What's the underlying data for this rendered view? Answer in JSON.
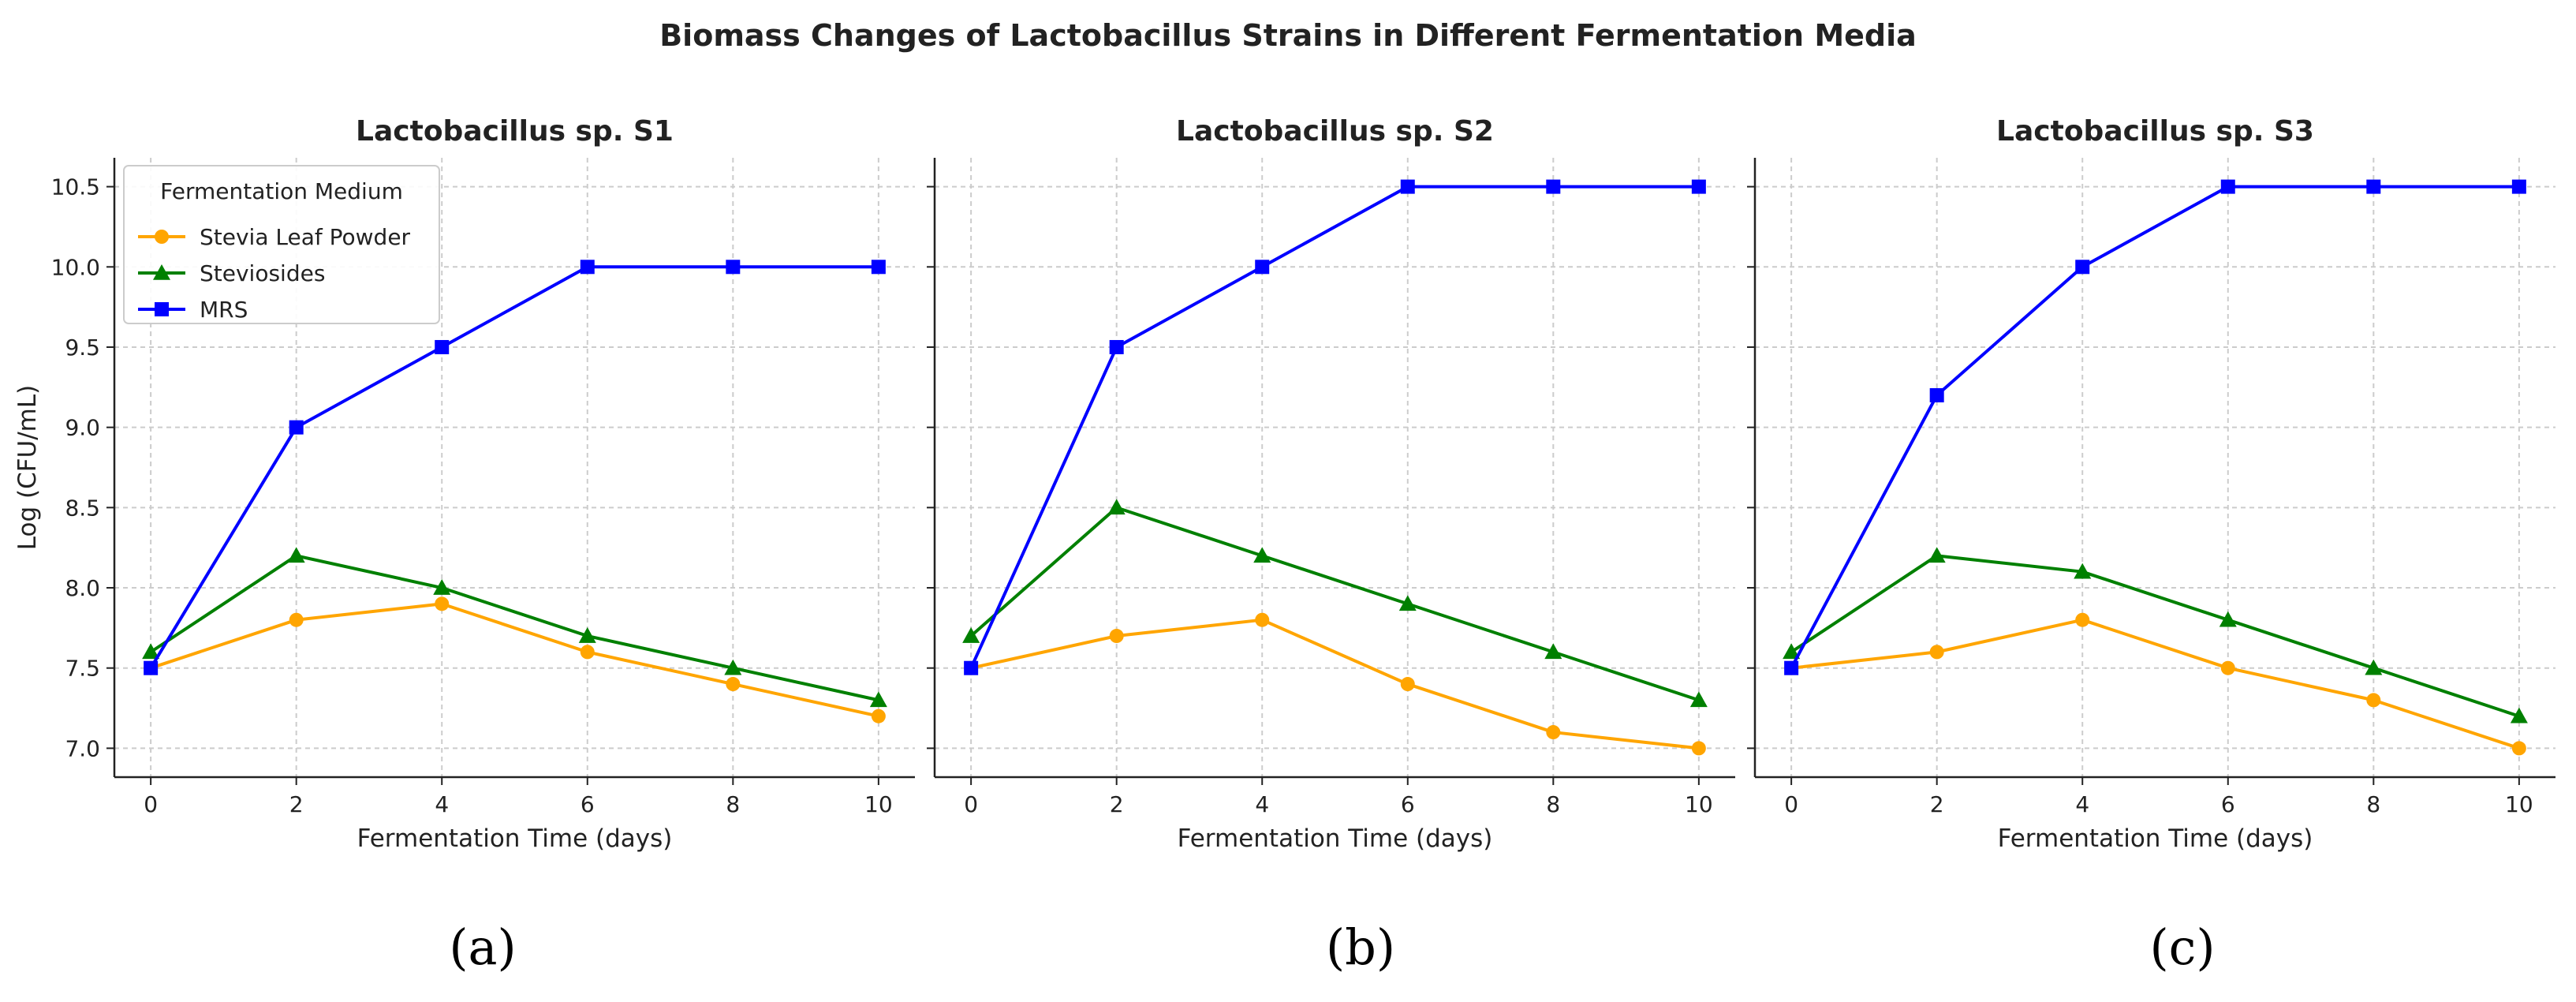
{
  "figure_title": "Biomass Changes of Lactobacillus Strains in Different Fermentation Media",
  "colors": {
    "stevia_leaf_powder": "#FFA500",
    "steviosides": "#008000",
    "mrs": "#0000FF",
    "grid": "#cccccc",
    "axis": "#222222"
  },
  "legend": {
    "title": "Fermentation Medium",
    "placement": "upper-left of first panel",
    "entries": [
      "Stevia Leaf Powder",
      "Steviosides",
      "MRS"
    ]
  },
  "chart_data": [
    {
      "type": "line",
      "panel_label": "(a)",
      "title": "Lactobacillus sp. S1",
      "xlabel": "Fermentation Time (days)",
      "ylabel": "Log (CFU/mL)",
      "x": [
        0,
        2,
        4,
        6,
        8,
        10
      ],
      "xlim": [
        -0.5,
        10.5
      ],
      "ylim": [
        6.82,
        10.68
      ],
      "xticks": [
        0,
        2,
        4,
        6,
        8,
        10
      ],
      "yticks": [
        "7.0",
        "7.5",
        "8.0",
        "8.5",
        "9.0",
        "9.5",
        "10.0",
        "10.5"
      ],
      "grid": true,
      "series": [
        {
          "name": "Stevia Leaf Powder",
          "marker": "circle",
          "values": [
            7.5,
            7.8,
            7.9,
            7.6,
            7.4,
            7.2
          ]
        },
        {
          "name": "Steviosides",
          "marker": "triangle",
          "values": [
            7.6,
            8.2,
            8.0,
            7.7,
            7.5,
            7.3
          ]
        },
        {
          "name": "MRS",
          "marker": "square",
          "values": [
            7.5,
            9.0,
            9.5,
            10.0,
            10.0,
            10.0
          ]
        }
      ]
    },
    {
      "type": "line",
      "panel_label": "(b)",
      "title": "Lactobacillus sp. S2",
      "xlabel": "Fermentation Time (days)",
      "ylabel": "",
      "x": [
        0,
        2,
        4,
        6,
        8,
        10
      ],
      "xlim": [
        -0.5,
        10.5
      ],
      "ylim": [
        6.82,
        10.68
      ],
      "xticks": [
        0,
        2,
        4,
        6,
        8,
        10
      ],
      "yticks": [],
      "grid": true,
      "series": [
        {
          "name": "Stevia Leaf Powder",
          "marker": "circle",
          "values": [
            7.5,
            7.7,
            7.8,
            7.4,
            7.1,
            7.0
          ]
        },
        {
          "name": "Steviosides",
          "marker": "triangle",
          "values": [
            7.7,
            8.5,
            8.2,
            7.9,
            7.6,
            7.3
          ]
        },
        {
          "name": "MRS",
          "marker": "square",
          "values": [
            7.5,
            9.5,
            10.0,
            10.5,
            10.5,
            10.5
          ]
        }
      ]
    },
    {
      "type": "line",
      "panel_label": "(c)",
      "title": "Lactobacillus sp. S3",
      "xlabel": "Fermentation Time (days)",
      "ylabel": "",
      "x": [
        0,
        2,
        4,
        6,
        8,
        10
      ],
      "xlim": [
        -0.5,
        10.5
      ],
      "ylim": [
        6.82,
        10.68
      ],
      "xticks": [
        0,
        2,
        4,
        6,
        8,
        10
      ],
      "yticks": [],
      "grid": true,
      "series": [
        {
          "name": "Stevia Leaf Powder",
          "marker": "circle",
          "values": [
            7.5,
            7.6,
            7.8,
            7.5,
            7.3,
            7.0
          ]
        },
        {
          "name": "Steviosides",
          "marker": "triangle",
          "values": [
            7.6,
            8.2,
            8.1,
            7.8,
            7.5,
            7.2
          ]
        },
        {
          "name": "MRS",
          "marker": "square",
          "values": [
            7.5,
            9.2,
            10.0,
            10.5,
            10.5,
            10.5
          ]
        }
      ]
    }
  ]
}
